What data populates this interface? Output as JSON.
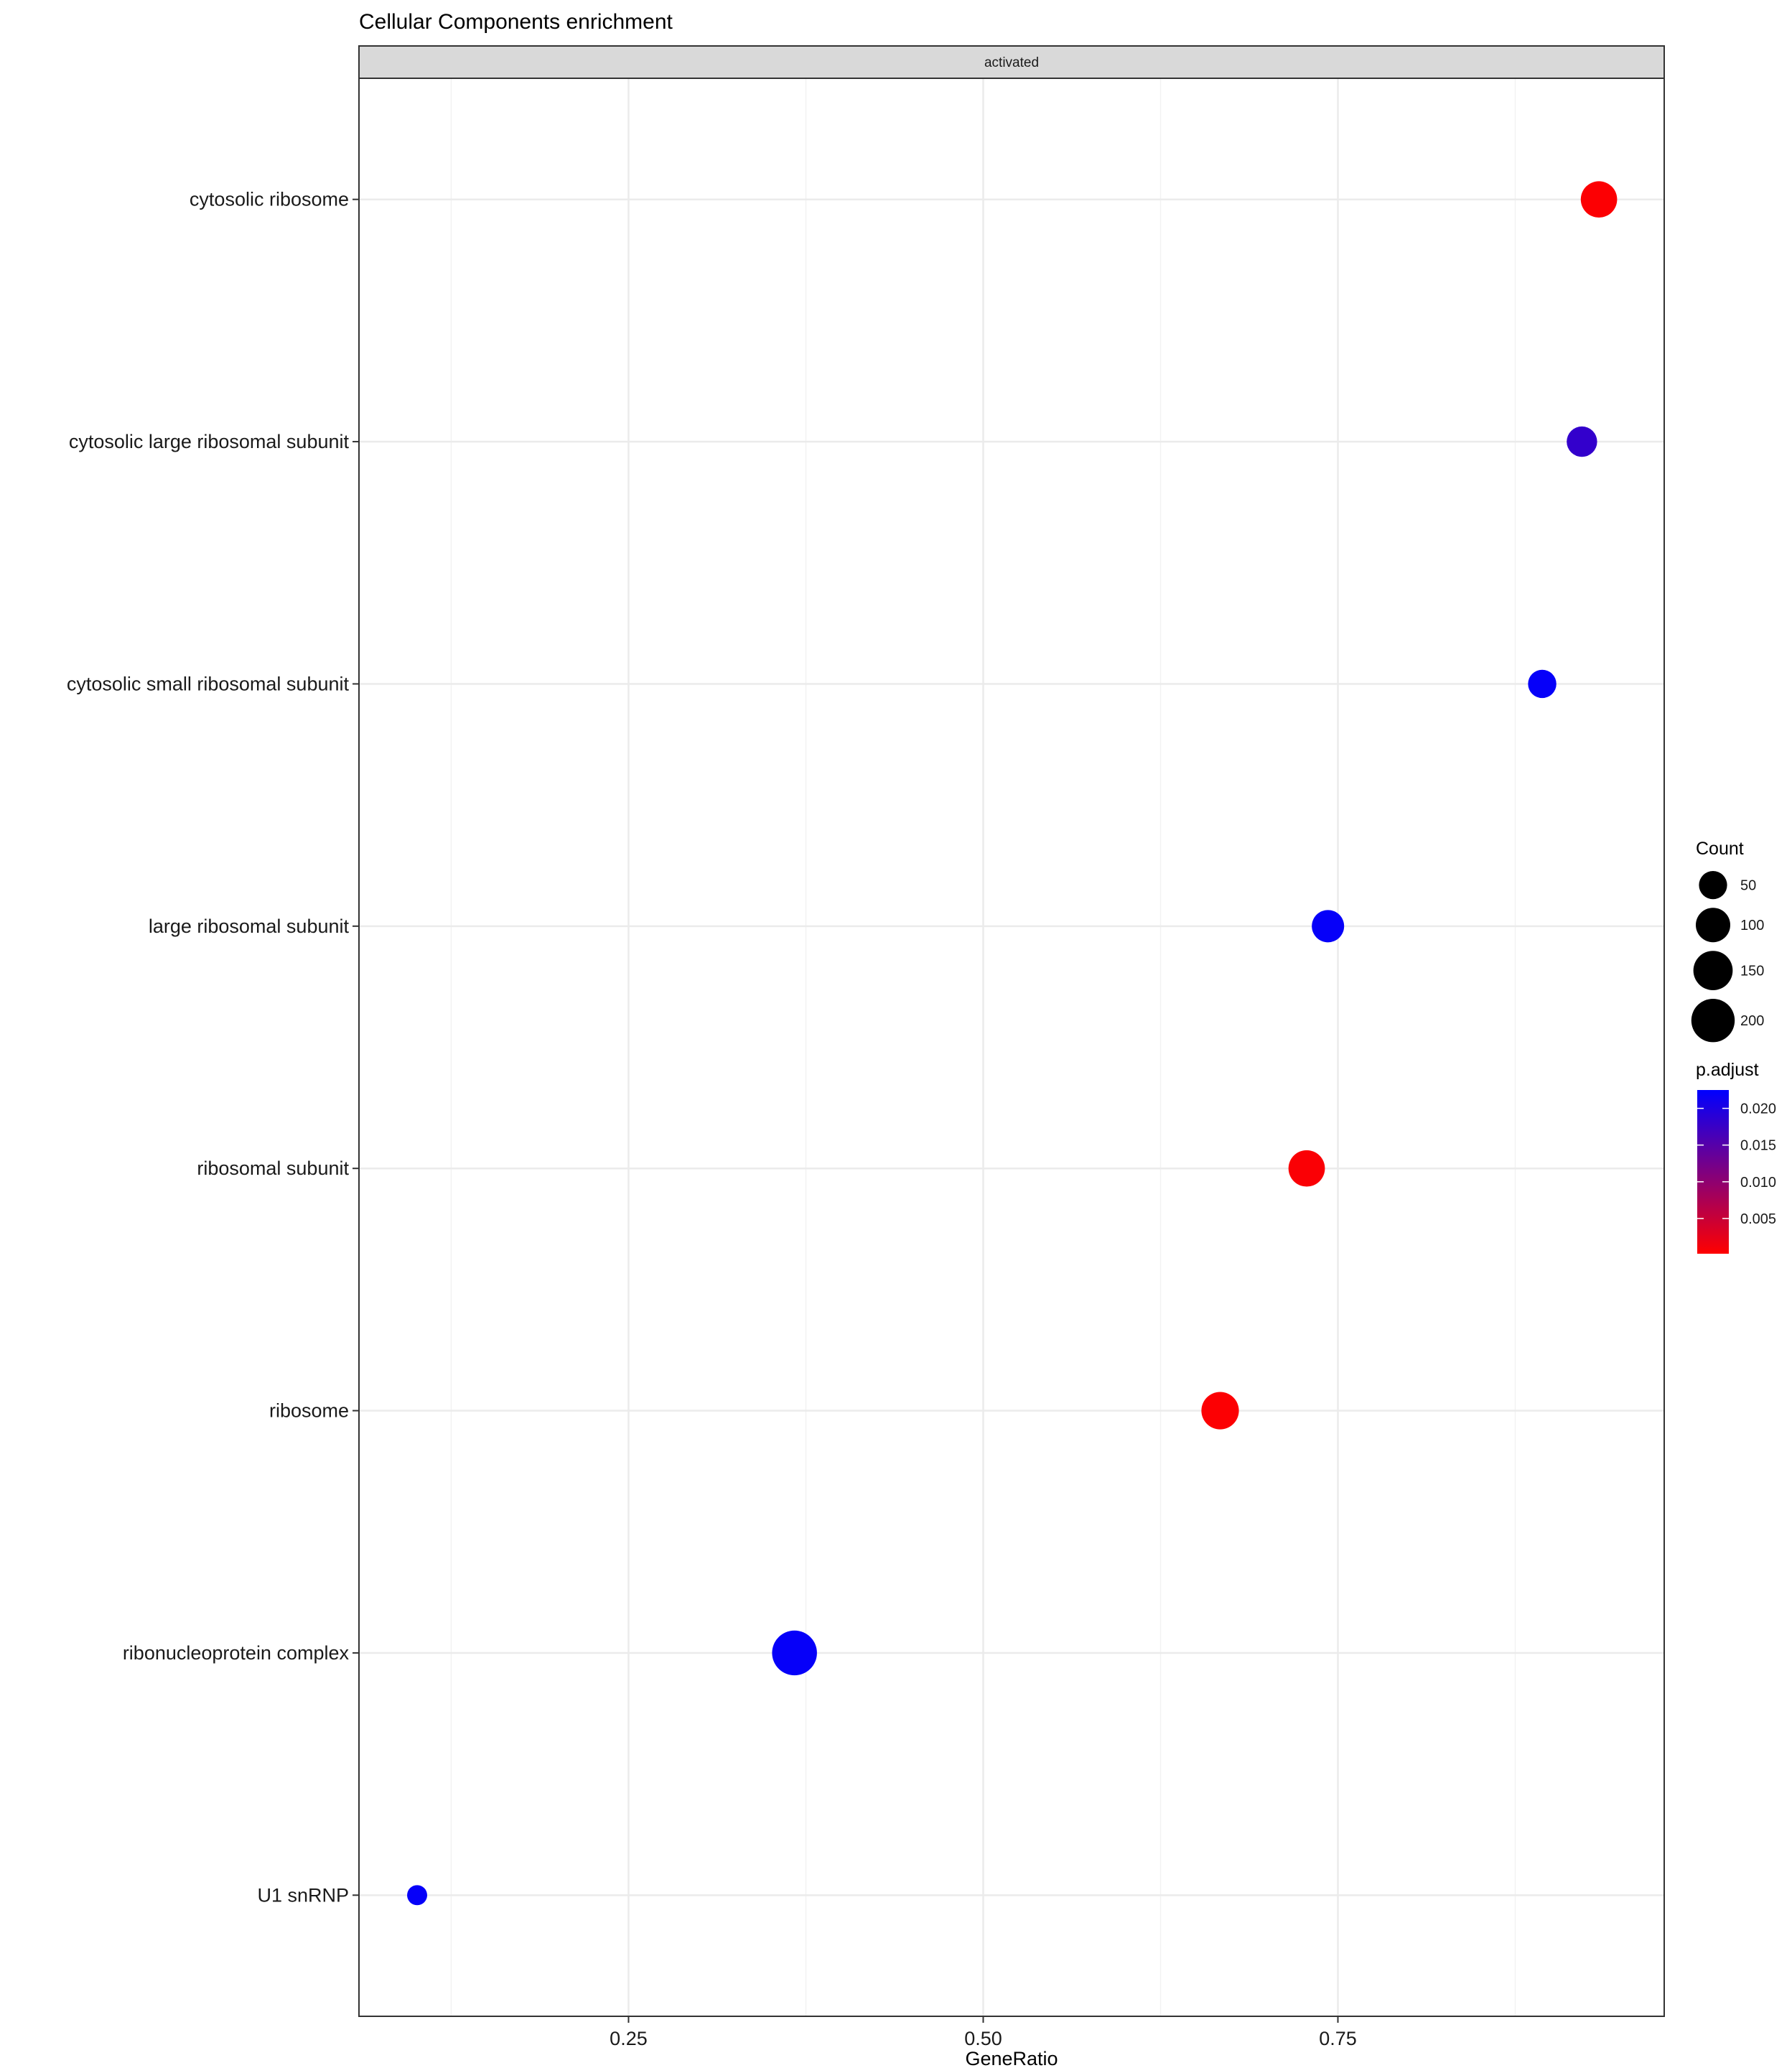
{
  "chart_data": {
    "type": "scatter",
    "title": "Cellular Components enrichment",
    "facet": "activated",
    "xlabel": "GeneRatio",
    "ylabel": "",
    "xlim": [
      0.06,
      0.98
    ],
    "xticks": [
      0.25,
      0.5,
      0.75
    ],
    "xtick_labels": [
      "0.25",
      "0.50",
      "0.75"
    ],
    "grid": true,
    "categories": [
      "cytosolic ribosome",
      "cytosolic large ribosomal subunit",
      "cytosolic small ribosomal subunit",
      "large ribosomal subunit",
      "ribosomal subunit",
      "ribosome",
      "ribonucleoprotein complex",
      "U1 snRNP"
    ],
    "points": [
      {
        "term": "cytosolic ribosome",
        "gene_ratio": 0.934,
        "count": 118,
        "p_adjust": 0.0005
      },
      {
        "term": "cytosolic large ribosomal subunit",
        "gene_ratio": 0.922,
        "count": 66,
        "p_adjust": 0.018
      },
      {
        "term": "cytosolic small ribosomal subunit",
        "gene_ratio": 0.894,
        "count": 51,
        "p_adjust": 0.022
      },
      {
        "term": "large ribosomal subunit",
        "gene_ratio": 0.743,
        "count": 81,
        "p_adjust": 0.022
      },
      {
        "term": "ribosomal subunit",
        "gene_ratio": 0.728,
        "count": 119,
        "p_adjust": 0.0006
      },
      {
        "term": "ribosome",
        "gene_ratio": 0.667,
        "count": 130,
        "p_adjust": 0.0005
      },
      {
        "term": "ribonucleoprotein complex",
        "gene_ratio": 0.367,
        "count": 220,
        "p_adjust": 0.022
      },
      {
        "term": "U1 snRNP",
        "gene_ratio": 0.101,
        "count": 11,
        "p_adjust": 0.022
      }
    ],
    "legend_size": {
      "title": "Count",
      "values": [
        50,
        100,
        150,
        200
      ],
      "labels": [
        "50",
        "100",
        "150",
        "200"
      ]
    },
    "legend_color": {
      "title": "p.adjust",
      "values": [
        0.005,
        0.01,
        0.015,
        0.02
      ],
      "labels": [
        "0.005",
        "0.010",
        "0.015",
        "0.020"
      ],
      "range": [
        0.0002,
        0.0225
      ],
      "low_color": "#ff0000",
      "high_color": "#0000ff"
    },
    "legend_placement": "right"
  }
}
